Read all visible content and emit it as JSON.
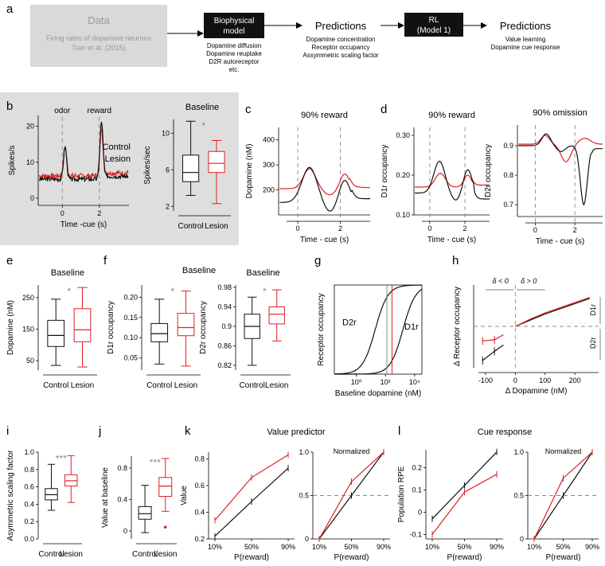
{
  "colors": {
    "control": "#111111",
    "lesion": "#e02020",
    "gray_box": "#d9d9d9",
    "panel_b_bg": "#dedede",
    "star": "#888888"
  },
  "panel_a": {
    "label": "a",
    "data_title": "Data",
    "data_line1": "Firing rates of dopamine neurons",
    "data_line2": "Tian et al. (2015)",
    "bio_title1": "Biophysical",
    "bio_title2": "model",
    "bio_items": [
      "Dopamine diffusion",
      "Dopamine reuptake",
      "D2R autoreceptor",
      "etc."
    ],
    "pred1_title": "Predictions",
    "pred1_items": [
      "Dopamine concentration",
      "Receptor occupancy",
      "Assymmetric scaling factor"
    ],
    "rl_title1": "RL",
    "rl_title2": "(Model 1)",
    "pred2_title": "Predictions",
    "pred2_items": [
      "Value learning",
      "Dopamine cue response"
    ]
  },
  "chart_data": [
    {
      "id": "b1",
      "type": "line",
      "label": "b",
      "ylabel": "Spikes/s",
      "xlabel": "Time -cue (s)",
      "ylim": [
        -2,
        23
      ],
      "xlim": [
        -1.3,
        3.6
      ],
      "xticks": [
        0,
        2
      ],
      "yticks": [
        0,
        10,
        20
      ],
      "events": [
        {
          "x": 0,
          "text": "odor"
        },
        {
          "x": 2,
          "text": "reward"
        }
      ],
      "legend": [
        "Control",
        "Lesion"
      ]
    },
    {
      "id": "b2",
      "type": "box",
      "title": "Baseline",
      "ylabel": "Spikes/sec",
      "ylim": [
        1.5,
        11.5
      ],
      "yticks": [
        2,
        6,
        10
      ],
      "categories": [
        "Control",
        "Lesion"
      ],
      "star": "*",
      "boxes": [
        {
          "min": 3.2,
          "q1": 4.7,
          "median": 5.7,
          "q3": 7.6,
          "max": 11.3
        },
        {
          "min": 2.3,
          "q1": 5.7,
          "median": 6.7,
          "q3": 8.0,
          "max": 9.2
        }
      ]
    },
    {
      "id": "c",
      "type": "line",
      "label": "c",
      "title": "90% reward",
      "ylabel": "Dopamine (nM)",
      "xlabel": "Time - cue (s)",
      "ylim": [
        100,
        450
      ],
      "xlim": [
        -0.9,
        3.4
      ],
      "xticks": [
        0,
        2
      ],
      "yticks": [
        200,
        300,
        400
      ]
    },
    {
      "id": "d1",
      "type": "line",
      "label": "d",
      "title": "90% reward",
      "ylabel": "D1r occupancy",
      "xlabel": "Time - cue (s)",
      "ylim": [
        0.1,
        0.32
      ],
      "xlim": [
        -0.9,
        3.4
      ],
      "xticks": [
        0,
        2
      ],
      "yticks": [
        0.1,
        0.2,
        0.3
      ],
      "ytick_labels": [
        "0.10",
        "0.20",
        "0.30"
      ]
    },
    {
      "id": "d2",
      "type": "line",
      "title": "90% omission",
      "ylabel": "D2r occupancy",
      "xlabel": "Time - cue (s)",
      "ylim": [
        0.66,
        0.97
      ],
      "xlim": [
        -0.9,
        3.4
      ],
      "xticks": [
        0,
        2
      ],
      "yticks": [
        0.7,
        0.8,
        0.9
      ]
    },
    {
      "id": "e",
      "type": "box",
      "label": "e",
      "title": "Baseline",
      "ylabel": "Dopamine (nM)",
      "ylim": [
        20,
        290
      ],
      "yticks": [
        50,
        150,
        250
      ],
      "categories": [
        "Control",
        "Lesion"
      ],
      "star": "*",
      "boxes": [
        {
          "min": 35,
          "q1": 95,
          "median": 130,
          "q3": 178,
          "max": 245
        },
        {
          "min": 30,
          "q1": 110,
          "median": 148,
          "q3": 215,
          "max": 282
        }
      ]
    },
    {
      "id": "f1",
      "type": "box",
      "label": "f",
      "ylabel": "D1r occupancy",
      "ylim": [
        0.02,
        0.23
      ],
      "yticks": [
        0.05,
        0.1,
        0.15,
        0.2
      ],
      "ytick_labels": [
        "0.05",
        "0.10",
        "0.15",
        "0.20"
      ],
      "categories": [
        "Control",
        "Lesion"
      ],
      "star": "*",
      "boxes": [
        {
          "min": 0.035,
          "q1": 0.09,
          "median": 0.11,
          "q3": 0.135,
          "max": 0.195
        },
        {
          "min": 0.03,
          "q1": 0.105,
          "median": 0.125,
          "q3": 0.16,
          "max": 0.215
        }
      ]
    },
    {
      "id": "f2",
      "type": "box",
      "title": "Baseline",
      "ylabel": "D2r occupancy",
      "ylim": [
        0.81,
        0.985
      ],
      "yticks": [
        0.82,
        0.86,
        0.9,
        0.94,
        0.98
      ],
      "categories": [
        "Control",
        "Lesion"
      ],
      "star": "*",
      "boxes": [
        {
          "min": 0.82,
          "q1": 0.875,
          "median": 0.9,
          "q3": 0.925,
          "max": 0.96
        },
        {
          "min": 0.87,
          "q1": 0.905,
          "median": 0.925,
          "q3": 0.94,
          "max": 0.975
        }
      ]
    },
    {
      "id": "g",
      "type": "line",
      "label": "g",
      "ylabel": "Receptor occupancy",
      "xlabel": "Baseline dopamine (nM)",
      "xscale": "log",
      "xlim": [
        -1.5,
        4.5
      ],
      "ylim": [
        0,
        1
      ],
      "xtick_labels": [
        "10⁰",
        "10²",
        "10⁴"
      ],
      "xticks": [
        0,
        2,
        4
      ],
      "series": [
        {
          "name": "D2r",
          "ec50_log": 1.3
        },
        {
          "name": "D1r",
          "ec50_log": 3.2
        }
      ],
      "marker_lines_log": [
        2.1,
        2.45
      ]
    },
    {
      "id": "h",
      "type": "line",
      "label": "h",
      "ylabel": "Δ Receptor occupancy",
      "xlabel": "Δ Dopamine (nM)",
      "xlim": [
        -140,
        280
      ],
      "ylim": [
        -0.2,
        0.2
      ],
      "xticks": [
        -100,
        0,
        100,
        200
      ],
      "xtick_labels": [
        "-100",
        "0",
        "100",
        "200"
      ],
      "annotations": [
        "δ < 0",
        "δ > 0",
        "D1r",
        "D2r"
      ],
      "series": [
        {
          "name": "Control",
          "x": [
            -110,
            -70,
            -40,
            0,
            50,
            100,
            150,
            200,
            250
          ],
          "y": [
            -0.165,
            -0.12,
            -0.09,
            0.0,
            0.03,
            0.06,
            0.085,
            0.11,
            0.135
          ]
        },
        {
          "name": "Lesion",
          "x": [
            -110,
            -70,
            -40,
            0,
            50,
            100,
            150,
            200,
            250
          ],
          "y": [
            -0.07,
            -0.065,
            -0.04,
            0.0,
            0.035,
            0.065,
            0.09,
            0.115,
            0.14
          ]
        }
      ]
    },
    {
      "id": "i",
      "type": "box",
      "label": "i",
      "ylabel": "Asymmetric scaling factor",
      "ylim": [
        0,
        1
      ],
      "yticks": [
        0,
        0.2,
        0.4,
        0.6,
        0.8,
        1.0
      ],
      "ytick_labels": [
        "0.0",
        "0.2",
        "0.4",
        "0.6",
        "0.8",
        "1.0"
      ],
      "categories": [
        "Control",
        "Lesion"
      ],
      "star": "***",
      "boxes": [
        {
          "min": 0.33,
          "q1": 0.45,
          "median": 0.51,
          "q3": 0.58,
          "max": 0.86
        },
        {
          "min": 0.42,
          "q1": 0.61,
          "median": 0.67,
          "q3": 0.74,
          "max": 0.96
        }
      ]
    },
    {
      "id": "j",
      "type": "box",
      "label": "j",
      "ylabel": "Value at baseline",
      "ylim": [
        -0.1,
        0.95
      ],
      "yticks": [
        0,
        0.4,
        0.8
      ],
      "ytick_labels": [
        "0",
        "0.4",
        "0.8"
      ],
      "categories": [
        "Control",
        "Lesion"
      ],
      "star": "***",
      "boxes": [
        {
          "min": -0.02,
          "q1": 0.15,
          "median": 0.22,
          "q3": 0.31,
          "max": 0.58
        },
        {
          "min": 0.25,
          "q1": 0.44,
          "median": 0.57,
          "q3": 0.68,
          "max": 0.92,
          "outlier": 0.05
        }
      ]
    },
    {
      "id": "k1",
      "type": "line",
      "label": "k",
      "suptitle": "Value predictor",
      "ylabel": "Value",
      "xlabel": "P(reward)",
      "categories": [
        "10%",
        "50%",
        "90%"
      ],
      "ylim": [
        0.2,
        0.85
      ],
      "yticks": [
        0.2,
        0.4,
        0.6,
        0.8
      ],
      "series": [
        {
          "name": "Control",
          "values": [
            0.22,
            0.48,
            0.73
          ]
        },
        {
          "name": "Lesion",
          "values": [
            0.34,
            0.66,
            0.83
          ]
        }
      ]
    },
    {
      "id": "k2",
      "type": "line",
      "title": "Normalized",
      "xlabel": "P(reward)",
      "categories": [
        "10%",
        "50%",
        "90%"
      ],
      "ylim": [
        0,
        1
      ],
      "yticks": [
        0,
        0.5,
        1.0
      ],
      "ytick_labels": [
        "0",
        "0.5",
        "1.0"
      ],
      "hline": 0.5,
      "series": [
        {
          "name": "Control",
          "values": [
            0,
            0.5,
            1
          ]
        },
        {
          "name": "Lesion",
          "values": [
            0,
            0.66,
            1
          ]
        }
      ]
    },
    {
      "id": "l1",
      "type": "line",
      "label": "l",
      "suptitle": "Cue response",
      "ylabel": "Population RPE",
      "xlabel": "P(reward)",
      "categories": [
        "10%",
        "50%",
        "90%"
      ],
      "ylim": [
        -0.12,
        0.28
      ],
      "yticks": [
        -0.1,
        0,
        0.1,
        0.2
      ],
      "ytick_labels": [
        "-0.1",
        "0",
        "0.1",
        "0.2"
      ],
      "series": [
        {
          "name": "Control",
          "values": [
            -0.03,
            0.12,
            0.27
          ]
        },
        {
          "name": "Lesion",
          "values": [
            -0.1,
            0.09,
            0.17
          ]
        }
      ]
    },
    {
      "id": "l2",
      "type": "line",
      "title": "Normalized",
      "xlabel": "P(reward)",
      "categories": [
        "10%",
        "50%",
        "90%"
      ],
      "ylim": [
        0,
        1
      ],
      "yticks": [
        0,
        0.5,
        1.0
      ],
      "ytick_labels": [
        "0",
        "0.5",
        "1.0"
      ],
      "hline": 0.5,
      "series": [
        {
          "name": "Control",
          "values": [
            0,
            0.5,
            1
          ]
        },
        {
          "name": "Lesion",
          "values": [
            0,
            0.7,
            1
          ]
        }
      ]
    }
  ]
}
